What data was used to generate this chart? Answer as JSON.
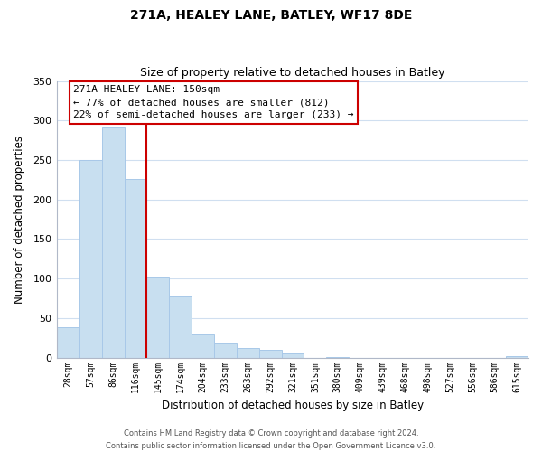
{
  "title": "271A, HEALEY LANE, BATLEY, WF17 8DE",
  "subtitle": "Size of property relative to detached houses in Batley",
  "xlabel": "Distribution of detached houses by size in Batley",
  "ylabel": "Number of detached properties",
  "bar_color": "#c8dff0",
  "bar_edge_color": "#a8c8e8",
  "vline_color": "#cc0000",
  "vline_index": 3.5,
  "categories": [
    "28sqm",
    "57sqm",
    "86sqm",
    "116sqm",
    "145sqm",
    "174sqm",
    "204sqm",
    "233sqm",
    "263sqm",
    "292sqm",
    "321sqm",
    "351sqm",
    "380sqm",
    "409sqm",
    "439sqm",
    "468sqm",
    "498sqm",
    "527sqm",
    "556sqm",
    "586sqm",
    "615sqm"
  ],
  "values": [
    39,
    250,
    291,
    226,
    103,
    78,
    29,
    19,
    12,
    10,
    5,
    0,
    1,
    0,
    0,
    0,
    0,
    0,
    0,
    0,
    2
  ],
  "ylim": [
    0,
    350
  ],
  "yticks": [
    0,
    50,
    100,
    150,
    200,
    250,
    300,
    350
  ],
  "annotation_title": "271A HEALEY LANE: 150sqm",
  "annotation_line1": "← 77% of detached houses are smaller (812)",
  "annotation_line2": "22% of semi-detached houses are larger (233) →",
  "footer1": "Contains HM Land Registry data © Crown copyright and database right 2024.",
  "footer2": "Contains public sector information licensed under the Open Government Licence v3.0.",
  "background_color": "#ffffff",
  "grid_color": "#d0dff0"
}
